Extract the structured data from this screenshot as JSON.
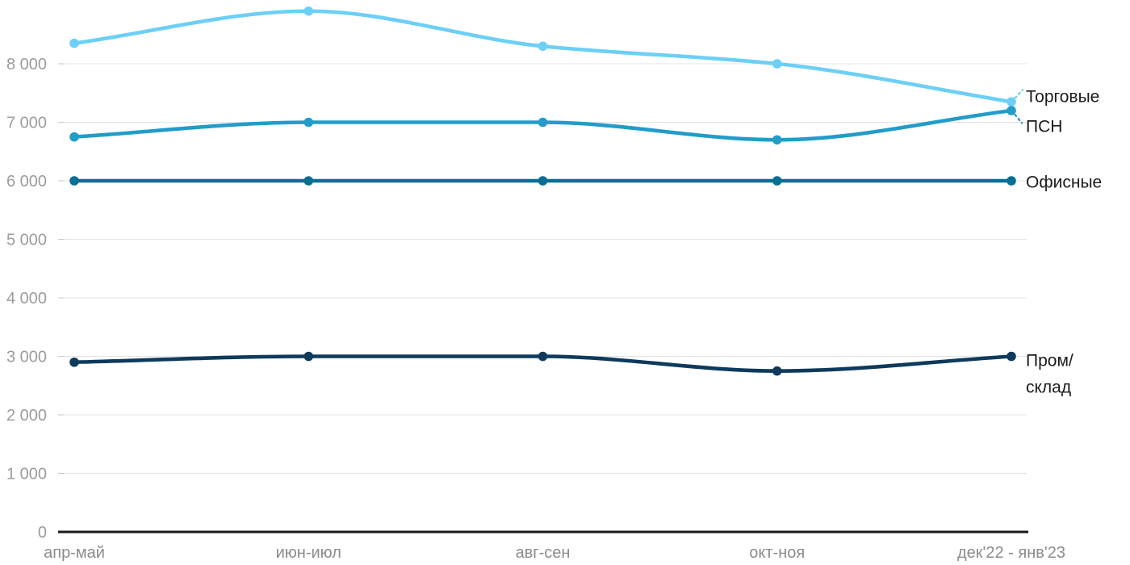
{
  "chart_data": {
    "type": "line",
    "title": "",
    "xlabel": "",
    "ylabel": "",
    "grid": true,
    "legend_position": "right-inline-labels",
    "ylim": [
      0,
      9090
    ],
    "categories": [
      "апр-май",
      "июн-июл",
      "авг-сен",
      "окт-ноя",
      "дек'22 - янв'23"
    ],
    "series": [
      {
        "id": "torgovye",
        "name": "Торговые",
        "label_lines": [
          "Торговые"
        ],
        "color": "#6CCFF6",
        "values": [
          8350,
          8900,
          8300,
          8000,
          7350
        ]
      },
      {
        "id": "psn",
        "name": "ПСН",
        "label_lines": [
          "ПСН"
        ],
        "color": "#229CC9",
        "values": [
          6750,
          7000,
          7000,
          6700,
          7200
        ]
      },
      {
        "id": "ofisnye",
        "name": "Офисные",
        "label_lines": [
          "Офисные"
        ],
        "color": "#086E96",
        "values": [
          6000,
          6000,
          6000,
          6000,
          6000
        ]
      },
      {
        "id": "prom-sklad",
        "name": "Пром/склад",
        "label_lines": [
          "Пром/",
          "склад"
        ],
        "color": "#0E3A5C",
        "values": [
          2900,
          3000,
          3000,
          2750,
          3000
        ]
      }
    ],
    "yticks": [
      {
        "value": 8000,
        "label": "8 000"
      },
      {
        "value": 7000,
        "label": "7 000"
      },
      {
        "value": 6000,
        "label": "6 000"
      },
      {
        "value": 5000,
        "label": "5 000"
      },
      {
        "value": 4000,
        "label": "4 000"
      },
      {
        "value": 3000,
        "label": "3 000"
      },
      {
        "value": 2000,
        "label": "2 000"
      },
      {
        "value": 1000,
        "label": "1 000"
      },
      {
        "value": 0,
        "label": "0"
      }
    ]
  },
  "colors": {
    "grid": "#E4E4E4",
    "axis": "#181818",
    "y_tick_text": "#9C9C9C",
    "x_tick_text": "#8C8C8C",
    "annotation_text": "#1b1b1b",
    "background": "#FFFFFF"
  }
}
